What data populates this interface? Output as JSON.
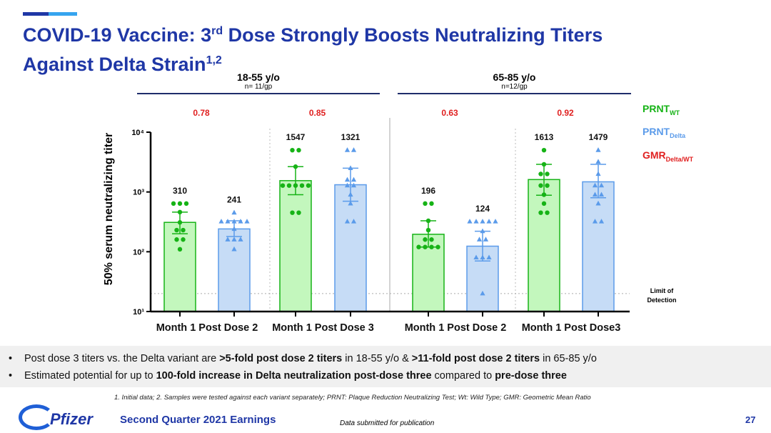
{
  "title": {
    "line1_a": "COVID-19 Vaccine: 3",
    "line1_sup": "rd",
    "line1_b": " Dose Strongly Boosts Neutralizing Titers",
    "line2": "Against Delta Strain",
    "line2_sup": "1,2"
  },
  "groups": [
    {
      "label": "18-55 y/o",
      "n": "n= 11/gp"
    },
    {
      "label": "65-85 y/o",
      "n": "n=12/gp"
    }
  ],
  "legend": [
    {
      "main": "PRNT",
      "sub": "WT",
      "color": "#16b316"
    },
    {
      "main": "PRNT",
      "sub": "Delta",
      "color": "#5b9bea"
    },
    {
      "main": "GMR",
      "sub": "Delta/WT",
      "color": "#e02020"
    }
  ],
  "chart_data": {
    "type": "bar",
    "ylabel": "50% serum neutralizing titer",
    "yscale": "log",
    "ylim": [
      10,
      10000
    ],
    "yticks": [
      "10¹",
      "10²",
      "10³",
      "10⁴"
    ],
    "limit_of_detection": {
      "value": 20,
      "label1": "Limit of",
      "label2": "Detection"
    },
    "categories": [
      "Month 1 Post Dose 2",
      "Month 1 Post Dose 3",
      "Month 1 Post Dose 2",
      "Month 1 Post  Dose3"
    ],
    "gmr": [
      "0.78",
      "0.85",
      "0.63",
      "0.92"
    ],
    "series": [
      {
        "name": "PRNT WT",
        "color": "#16b316",
        "fill": "#c3f7bd",
        "values": [
          310,
          1547,
          196,
          1613
        ],
        "labels": [
          "310",
          "1547",
          "196",
          "1613"
        ],
        "err": [
          [
            200,
            460
          ],
          [
            900,
            2650
          ],
          [
            120,
            330
          ],
          [
            880,
            2900
          ]
        ],
        "points": [
          [
            640,
            640,
            640,
            460,
            310,
            230,
            230,
            160,
            160,
            110
          ],
          [
            5000,
            5000,
            2650,
            1280,
            1280,
            1280,
            1280,
            1280,
            450,
            450
          ],
          [
            640,
            640,
            330,
            230,
            160,
            160,
            120,
            120,
            120,
            120
          ],
          [
            5000,
            2900,
            2000,
            2000,
            1280,
            1280,
            900,
            640,
            450,
            450
          ]
        ]
      },
      {
        "name": "PRNT Delta",
        "color": "#5b9bea",
        "fill": "#c6dcf6",
        "values": [
          241,
          1321,
          124,
          1479
        ],
        "labels": [
          "241",
          "1321",
          "124",
          "1479"
        ],
        "err": [
          [
            180,
            330
          ],
          [
            700,
            2500
          ],
          [
            70,
            220
          ],
          [
            800,
            2900
          ]
        ],
        "points": [
          [
            450,
            320,
            320,
            320,
            320,
            320,
            240,
            160,
            160,
            160,
            110
          ],
          [
            5000,
            5000,
            2500,
            1600,
            1600,
            1280,
            1280,
            900,
            640,
            320,
            320
          ],
          [
            320,
            320,
            320,
            320,
            320,
            220,
            160,
            160,
            80,
            80,
            80,
            20
          ],
          [
            5000,
            3200,
            2000,
            1280,
            1280,
            900,
            900,
            640,
            320,
            320
          ]
        ]
      }
    ]
  },
  "bullets": [
    {
      "a": "Post dose 3 titers vs. the Delta variant are ",
      "b": ">5-fold post dose 2 titers",
      "c": " in 18-55 y/o &  ",
      "d": ">11-fold post dose 2 titers",
      "e": " in 65-85 y/o"
    },
    {
      "a": "Estimated potential for up to ",
      "b": "100-fold increase in Delta neutralization post-dose three",
      "c": " compared to ",
      "d": "pre-dose three",
      "e": ""
    }
  ],
  "footnote": "1. Initial data; 2. Samples were tested against each variant separately; PRNT: Plaque Reduction Neutralizing Test; Wt: Wild Type; GMR: Geometric Mean Ratio",
  "footer": {
    "logo": "Pfizer",
    "earnings": "Second Quarter 2021 Earnings",
    "submitted": "Data submitted for publication",
    "page": "27"
  }
}
